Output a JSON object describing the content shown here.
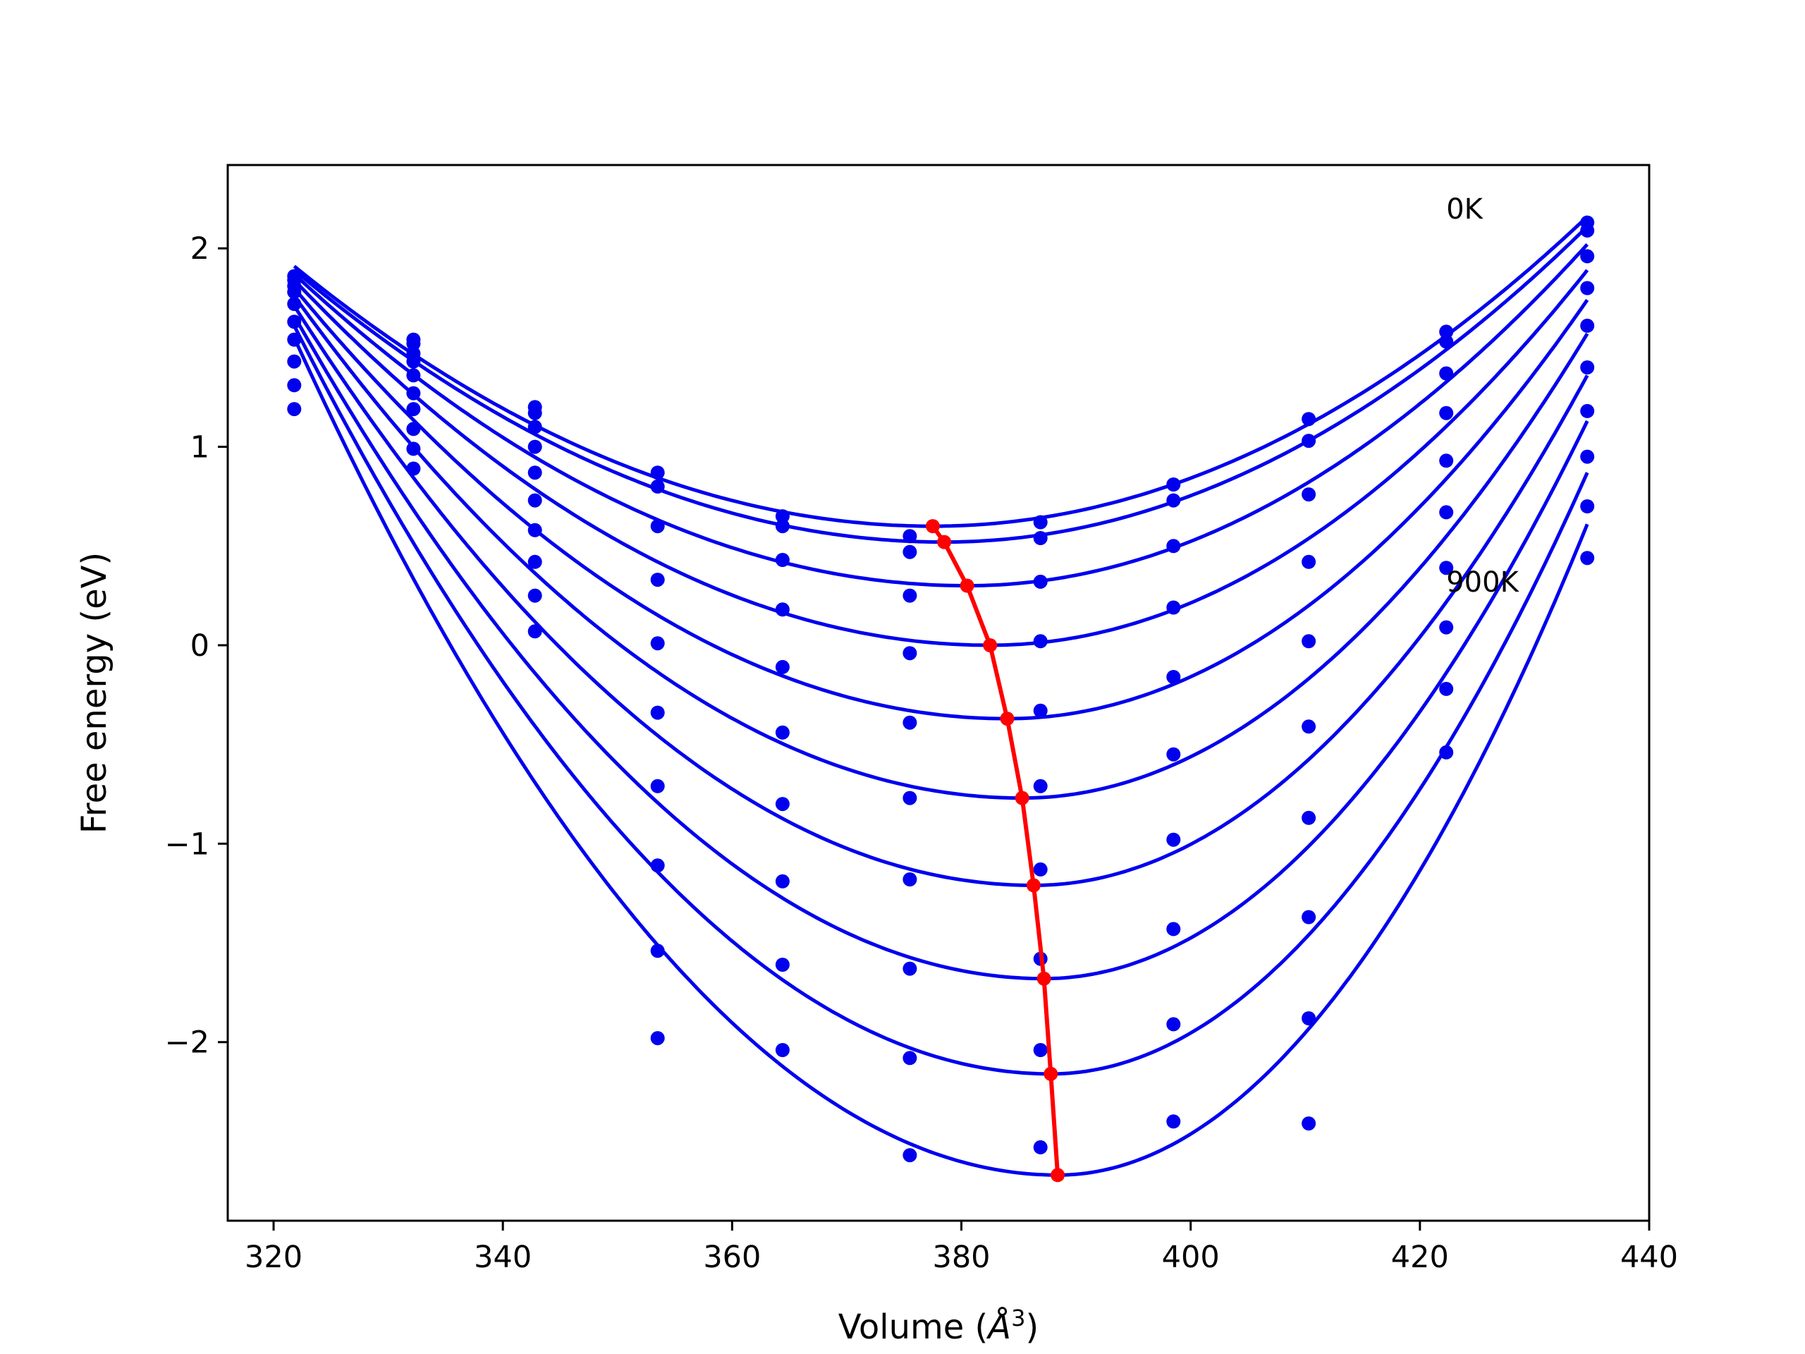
{
  "chart_data": {
    "type": "line",
    "title": "",
    "xlabel_prefix": "Volume (",
    "xlabel_symbol": "Å",
    "xlabel_exp": "3",
    "xlabel_suffix": ")",
    "ylabel": "Free energy (eV)",
    "xlim": [
      316,
      440
    ],
    "ylim": [
      -2.9,
      2.42
    ],
    "xticks": [
      320,
      340,
      360,
      380,
      400,
      420,
      440
    ],
    "xtick_labels": [
      "320",
      "340",
      "360",
      "380",
      "400",
      "420",
      "440"
    ],
    "yticks": [
      -2,
      -1,
      0,
      1,
      2
    ],
    "ytick_labels": [
      "−2",
      "−1",
      "0",
      "1",
      "2"
    ],
    "annotations": [
      {
        "text": "0K",
        "x": 422.3,
        "y": 2.2
      },
      {
        "text": "900K",
        "x": 422.3,
        "y": 0.32
      }
    ],
    "colors": {
      "curves": "#0000ee",
      "points": "#0000ee",
      "minimum_path": "#ff0000"
    },
    "volumes": [
      321.8,
      332.2,
      342.8,
      353.5,
      364.4,
      375.5,
      386.9,
      398.5,
      410.3,
      422.3,
      434.6
    ],
    "fit_curves": [
      {
        "vmin": 377.5,
        "emin": 0.6,
        "left": 1.91,
        "right": 2.16
      },
      {
        "vmin": 378.5,
        "emin": 0.52,
        "left": 1.89,
        "right": 2.11
      },
      {
        "vmin": 380.5,
        "emin": 0.3,
        "left": 1.87,
        "right": 2.02
      },
      {
        "vmin": 382.5,
        "emin": 0.0,
        "left": 1.84,
        "right": 1.89
      },
      {
        "vmin": 384.0,
        "emin": -0.37,
        "left": 1.8,
        "right": 1.74
      },
      {
        "vmin": 385.3,
        "emin": -0.77,
        "left": 1.76,
        "right": 1.57
      },
      {
        "vmin": 386.3,
        "emin": -1.21,
        "left": 1.71,
        "right": 1.36
      },
      {
        "vmin": 387.2,
        "emin": -1.68,
        "left": 1.66,
        "right": 1.13
      },
      {
        "vmin": 387.8,
        "emin": -2.16,
        "left": 1.61,
        "right": 0.87
      },
      {
        "vmin": 388.4,
        "emin": -2.67,
        "left": 1.55,
        "right": 0.61
      }
    ],
    "data_points": [
      [
        1.86,
        1.54,
        1.2,
        0.87,
        0.65,
        0.55,
        0.62,
        0.81,
        1.14,
        1.58,
        2.13
      ],
      [
        1.84,
        1.52,
        1.17,
        0.8,
        0.6,
        0.47,
        0.54,
        0.73,
        1.03,
        1.53,
        2.09
      ],
      [
        1.81,
        1.47,
        1.1,
        0.6,
        0.43,
        0.25,
        0.32,
        0.5,
        0.76,
        1.37,
        1.96
      ],
      [
        1.78,
        1.43,
        1.0,
        0.33,
        0.18,
        -0.04,
        0.02,
        0.19,
        0.42,
        1.17,
        1.8
      ],
      [
        1.72,
        1.36,
        0.87,
        0.01,
        -0.11,
        -0.39,
        -0.33,
        -0.16,
        0.02,
        0.93,
        1.61
      ],
      [
        1.63,
        1.27,
        0.73,
        -0.34,
        -0.44,
        -0.77,
        -0.71,
        -0.55,
        -0.41,
        0.67,
        1.4
      ],
      [
        1.54,
        1.19,
        0.58,
        -0.71,
        -0.8,
        -1.18,
        -1.13,
        -0.98,
        -0.87,
        0.39,
        1.18
      ],
      [
        1.43,
        1.09,
        0.42,
        -1.11,
        -1.19,
        -1.63,
        -1.58,
        -1.43,
        -1.37,
        0.09,
        0.95
      ],
      [
        1.31,
        0.99,
        0.25,
        -1.54,
        -1.61,
        -2.08,
        -2.04,
        -1.91,
        -1.88,
        -0.22,
        0.7
      ],
      [
        1.19,
        0.89,
        0.07,
        -1.98,
        -2.04,
        -2.57,
        -2.53,
        -2.4,
        -2.41,
        -0.54,
        0.44
      ]
    ],
    "minimum_path": {
      "x": [
        377.5,
        378.5,
        380.5,
        382.5,
        384.0,
        385.3,
        386.3,
        387.2,
        387.8,
        388.4
      ],
      "y": [
        0.6,
        0.52,
        0.3,
        0.0,
        -0.37,
        -0.77,
        -1.21,
        -1.68,
        -2.16,
        -2.67
      ]
    }
  }
}
